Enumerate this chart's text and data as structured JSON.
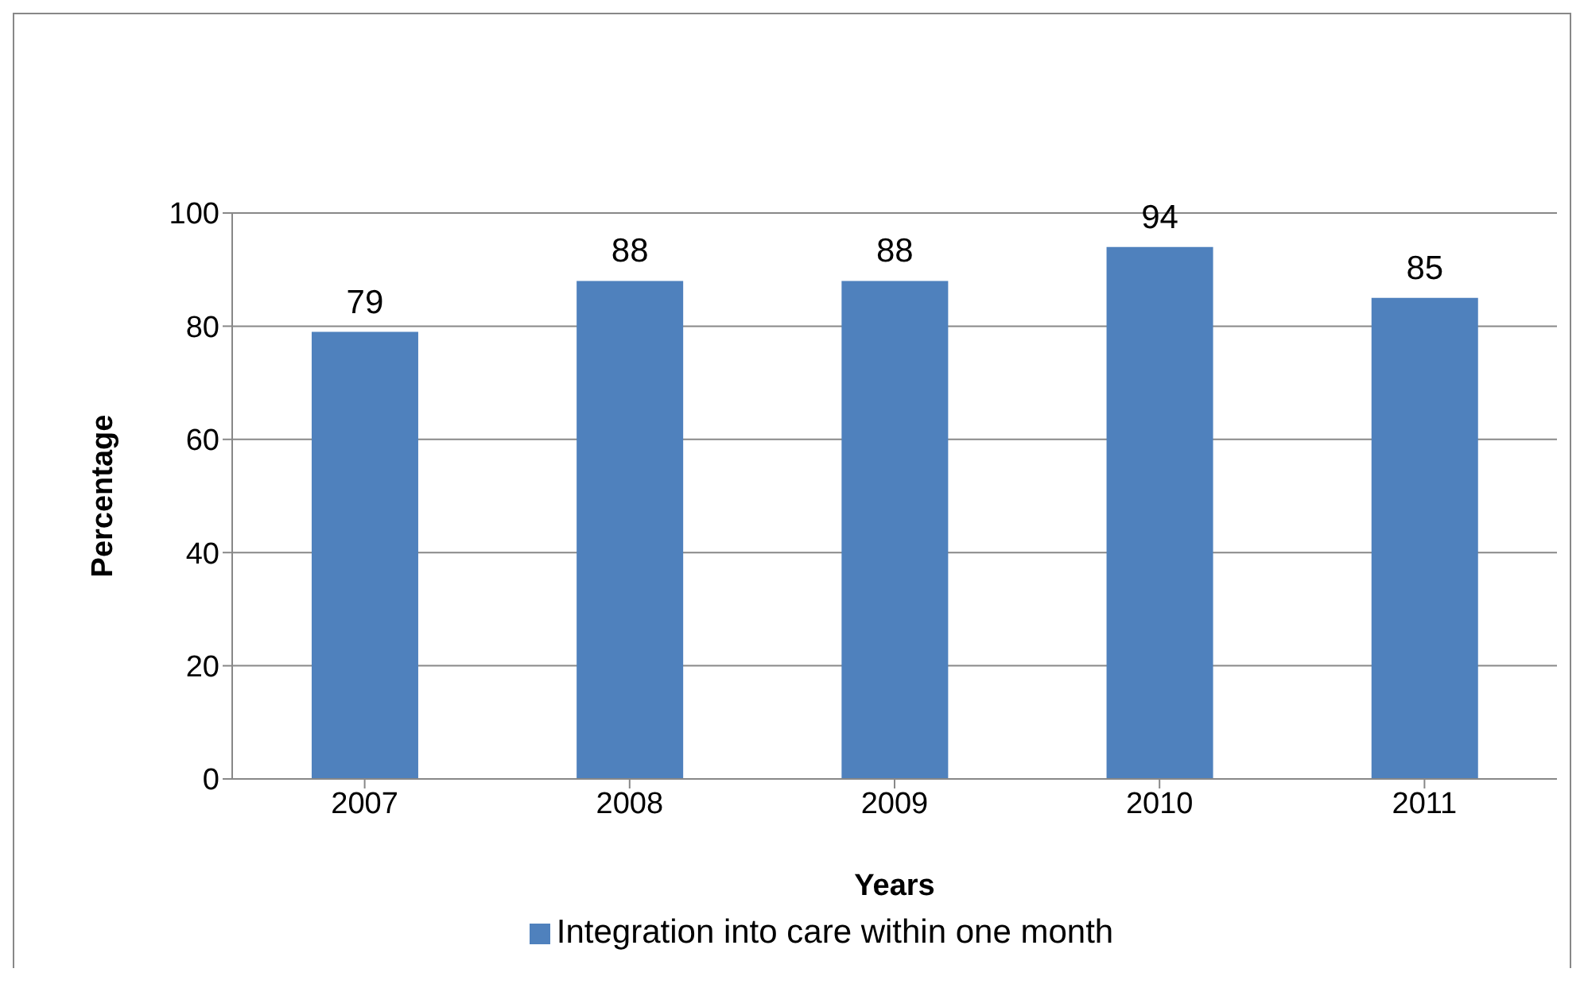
{
  "chart_data": {
    "type": "bar",
    "xlabel": "Years",
    "ylabel": "Percentage",
    "categories": [
      "2007",
      "2008",
      "2009",
      "2010",
      "2011"
    ],
    "series": [
      {
        "name": "Integration into care within one month",
        "color": "#4f81bd",
        "values": [
          79,
          88,
          88,
          94,
          85
        ]
      }
    ],
    "ylim": [
      0,
      100
    ],
    "yticks": [
      0,
      20,
      40,
      60,
      80,
      100
    ],
    "grid": "y",
    "legend": "bottom",
    "data_labels": true
  }
}
